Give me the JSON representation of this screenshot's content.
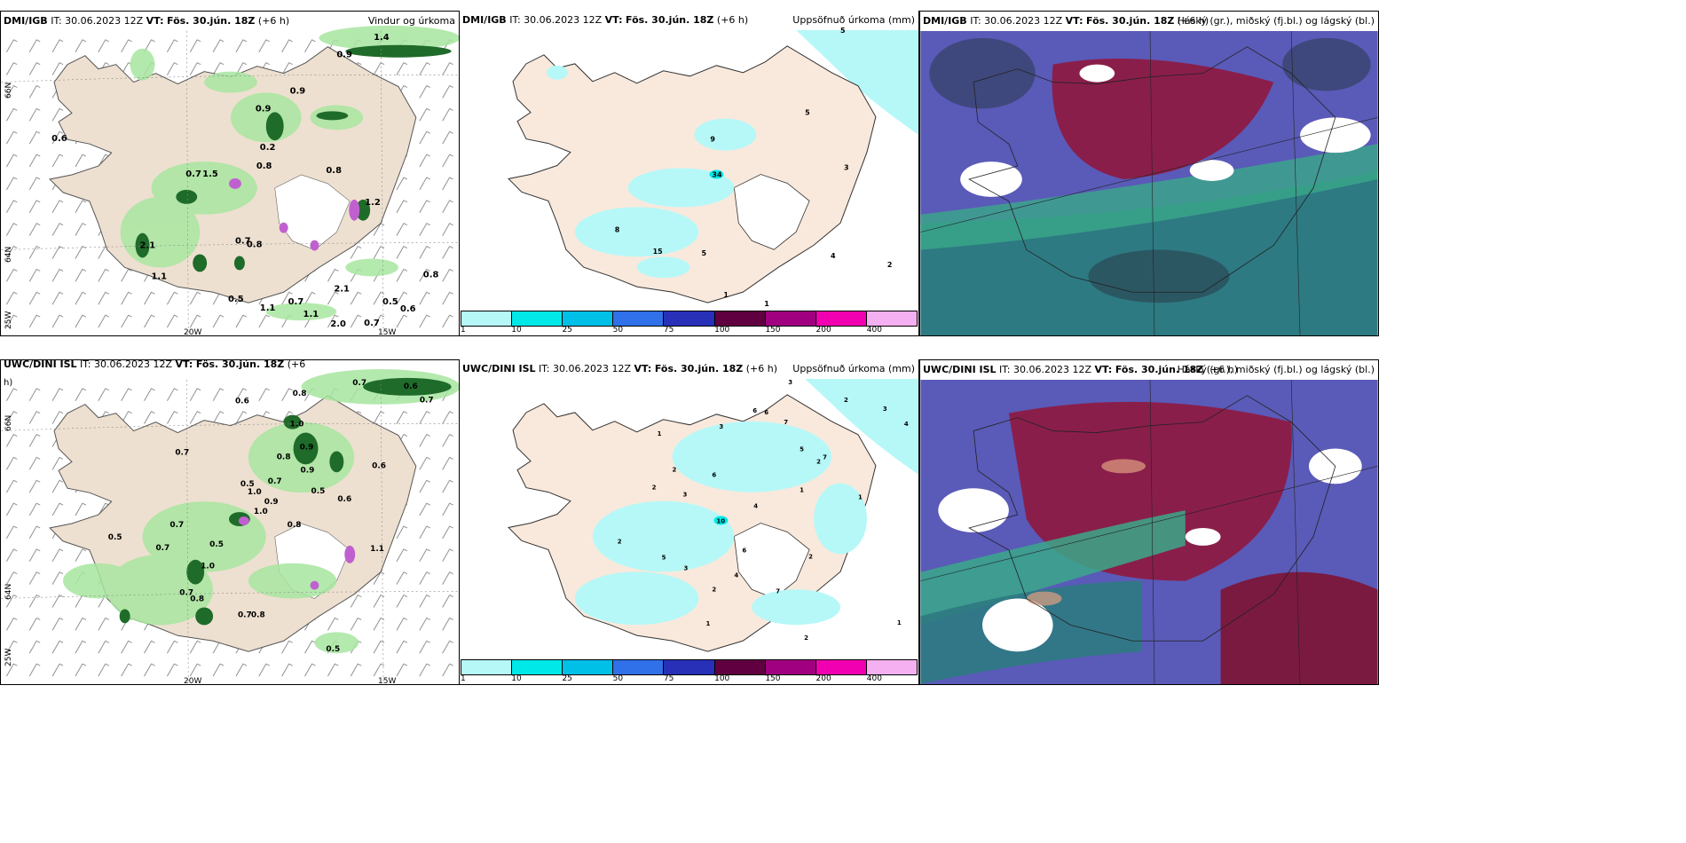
{
  "panels": {
    "p1": {
      "model": "DMI/IGB",
      "it": "IT: 30.06.2023 12Z",
      "vt_label": "VT:",
      "vt": "Fös. 30.jún. 18Z",
      "lead": "(+6 h)",
      "title": "Vindur og úrkoma"
    },
    "p2": {
      "model": "DMI/IGB",
      "it": "IT: 30.06.2023 12Z",
      "vt_label": "VT:",
      "vt": "Fös. 30.jún. 18Z",
      "lead": "(+6 h)",
      "title": "Uppsöfnuð úrkoma (mm)"
    },
    "p3": {
      "model": "DMI/IGB",
      "it": "IT: 30.06.2023 12Z",
      "vt_label": "VT:",
      "vt": "Fös. 30.jún. 18Z",
      "lead": "(+6 h)",
      "title": "Háský (gr.), miðský (fj.bl.) og lágský (bl.)"
    },
    "p4": {
      "model": "UWC/DINI ISL",
      "it": "IT: 30.06.2023 12Z",
      "vt_label": "VT:",
      "vt": "Fös. 30.jún. 18Z",
      "lead": "(+6",
      "lead_wrap": "h)",
      "title": ""
    },
    "p5": {
      "model": "UWC/DINI ISL",
      "it": "IT: 30.06.2023 12Z",
      "vt_label": "VT:",
      "vt": "Fös. 30.jún. 18Z",
      "lead": "(+6 h)",
      "title": "Uppsöfnuð úrkoma (mm)"
    },
    "p6": {
      "model": "UWC/DINI ISL",
      "it": "IT: 30.06.2023 12Z",
      "vt_label": "VT:",
      "vt": "Fös. 30.jún. 18Z",
      "lead": "(+6 h)",
      "title": "Háský (gr.), miðský (fj.bl.) og lágský (bl.)"
    }
  },
  "axes": {
    "lat66": "66N",
    "lat64": "64N",
    "lat_s": "25W",
    "lon20": "20W",
    "lon15": "15W"
  },
  "legend": {
    "ticks": [
      "1",
      "10",
      "25",
      "50",
      "75",
      "100",
      "150",
      "200",
      "400"
    ],
    "colors": [
      "#b6f8f8",
      "#00e8e8",
      "#00c0e8",
      "#3070e8",
      "#2830b8",
      "#600040",
      "#a00080",
      "#f000b0",
      "#f4b0f0"
    ]
  },
  "p1_values": [
    "0.9",
    "1.4",
    "0.9",
    "0.6",
    "0.9",
    "0.2",
    "0.8",
    "0.7",
    "1.5",
    "0.8",
    "1.2",
    "2.1",
    "0.7",
    "0.8",
    "1.1",
    "0.5",
    "0.7",
    "1.1",
    "1.1",
    "2.1",
    "0.5",
    "0.6",
    "0.7",
    "2.0"
  ],
  "p2_values": [
    "5",
    "9",
    "5",
    "34",
    "3",
    "8",
    "15",
    "5",
    "4",
    "2",
    "1",
    "1"
  ],
  "p4_values": [
    "0.8",
    "0.7",
    "0.6",
    "0.6",
    "0.7",
    "1.0",
    "0.9",
    "0.7",
    "0.8",
    "0.9",
    "0.5",
    "1.0",
    "0.7",
    "0.5",
    "0.9",
    "0.6",
    "1.0",
    "0.5",
    "0.7",
    "0.8",
    "0.5",
    "0.6",
    "0.7",
    "1.0",
    "0.7",
    "0.8",
    "0.7",
    "0.8",
    "0.5",
    "1.1"
  ],
  "p5_values": [
    "3",
    "2",
    "3",
    "4",
    "1",
    "3",
    "6",
    "6",
    "7",
    "5",
    "2",
    "1",
    "2",
    "6",
    "2",
    "3",
    "4",
    "7",
    "1",
    "10",
    "2",
    "5",
    "3",
    "6",
    "4",
    "2",
    "2",
    "7",
    "1",
    "2",
    "1"
  ]
}
